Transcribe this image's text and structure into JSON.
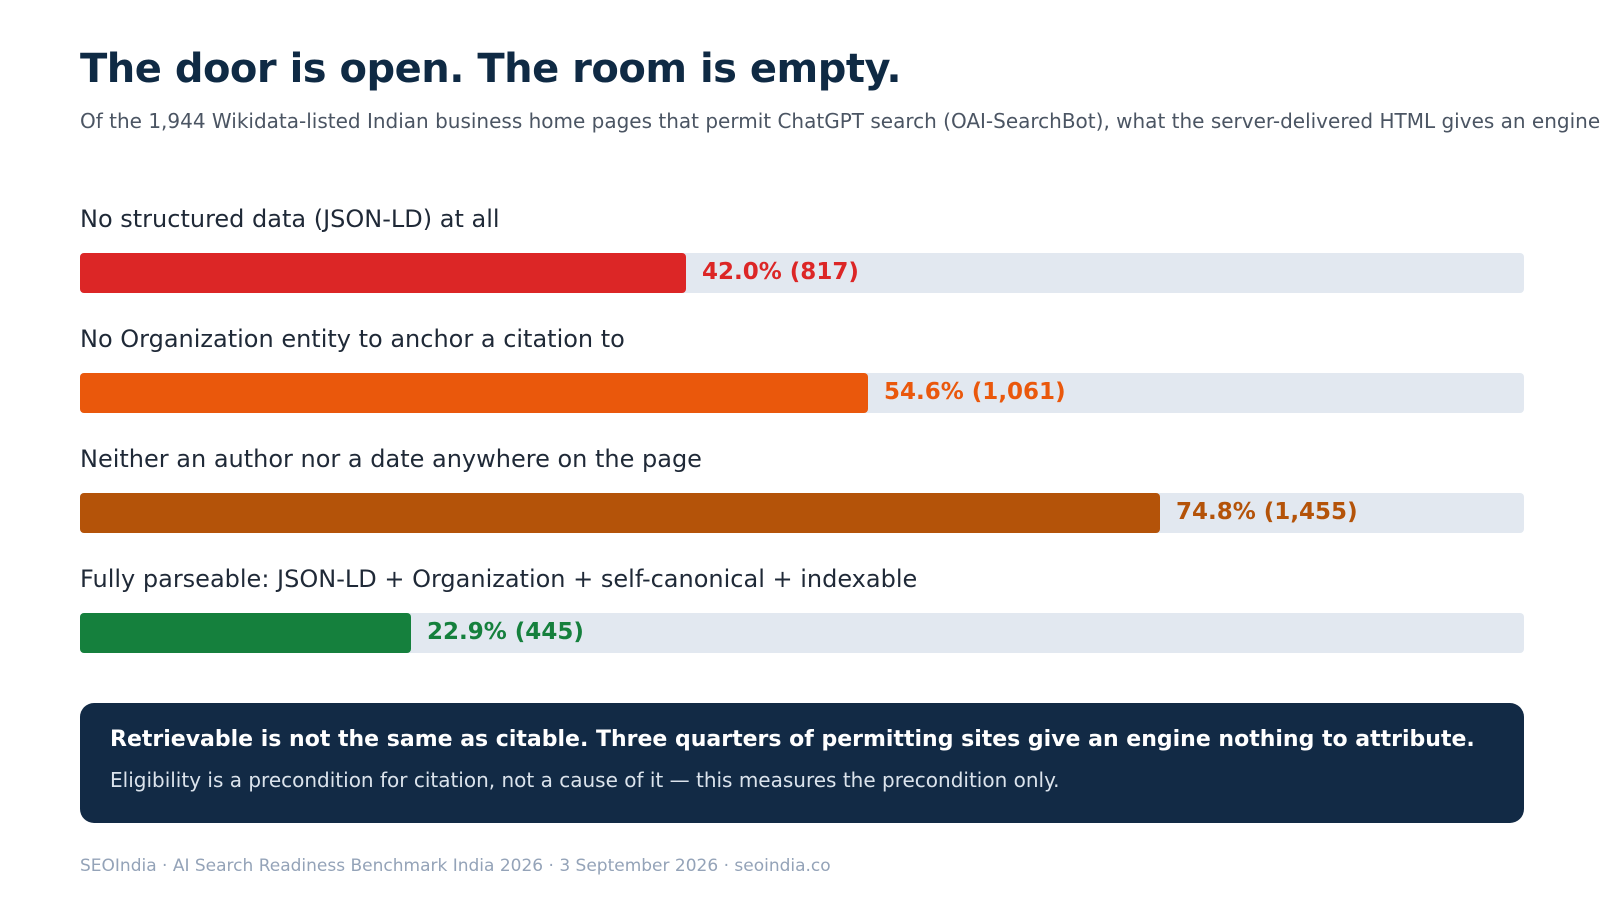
{
  "header": {
    "title": "The door is open. The room is empty.",
    "subtitle": "Of the 1,944 Wikidata-listed Indian business home pages that permit ChatGPT search (OAI-SearchBot), what the server-delivered HTML gives an engine"
  },
  "chart_data": {
    "type": "bar",
    "orientation": "horizontal",
    "total": 1944,
    "xlim": [
      0,
      100
    ],
    "grid": false,
    "categories": [
      "No structured data (JSON-LD) at all",
      "No Organization entity to anchor a citation to",
      "Neither an author nor a date anywhere on the page",
      "Fully parseable: JSON-LD + Organization + self-canonical + indexable"
    ],
    "values": [
      42.0,
      54.6,
      74.8,
      22.9
    ],
    "counts": [
      817,
      1061,
      1455,
      445
    ],
    "value_labels": [
      "42.0% (817)",
      "54.6% (1,061)",
      "74.8% (1,455)",
      "22.9% (445)"
    ],
    "colors": [
      "#dc2626",
      "#ea580c",
      "#b45309",
      "#15803d"
    ],
    "track_color": "#e2e8f0"
  },
  "callout": {
    "headline": "Retrievable is not the same as citable. Three quarters of permitting sites give an engine nothing to attribute.",
    "body": "Eligibility is a precondition for citation, not a cause of it — this measures the precondition only."
  },
  "footer": {
    "source": "SEOIndia · AI Search Readiness Benchmark India 2026 · 3 September 2026 · seoindia.co"
  }
}
